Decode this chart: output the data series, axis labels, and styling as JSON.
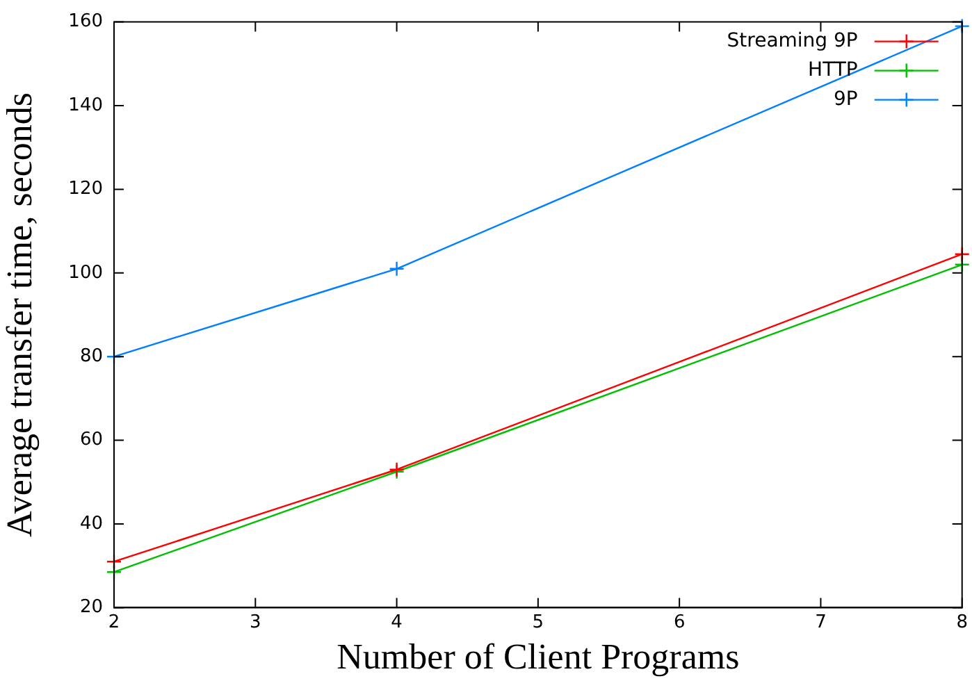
{
  "chart_data": {
    "type": "line",
    "xlabel": "Number of Client Programs",
    "ylabel": "Average transfer time, seconds",
    "x": [
      2,
      4,
      8
    ],
    "series": [
      {
        "name": "Streaming 9P",
        "color": "#ff0000",
        "marker": "cross",
        "values": [
          31,
          53,
          104.5
        ]
      },
      {
        "name": "HTTP",
        "color": "#00c000",
        "marker": "cross",
        "values": [
          28.5,
          52.5,
          102
        ]
      },
      {
        "name": "9P",
        "color": "#0080ff",
        "marker": "cross",
        "values": [
          80,
          101,
          159
        ]
      }
    ],
    "xlim": [
      2,
      8
    ],
    "xticks": [
      2,
      3,
      4,
      5,
      6,
      7,
      8
    ],
    "ylim": [
      20,
      160
    ],
    "yticks": [
      20,
      40,
      60,
      80,
      100,
      120,
      140,
      160
    ],
    "grid": false,
    "legend": "top right",
    "line_style": "solid"
  }
}
